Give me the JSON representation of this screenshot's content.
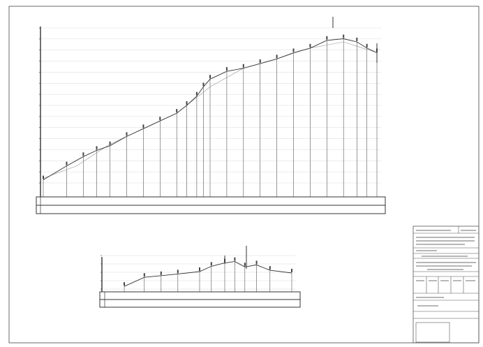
{
  "sheet": {
    "frame_color": "#6a6a6a",
    "ink_color": "#333333",
    "grid_color": "#d8d8d8"
  },
  "profile_main": {
    "header": "",
    "scale_note_1": "",
    "scale_note_2": "",
    "scale_mark": "",
    "station_count": 24,
    "elevation_profile": [
      [
        0.0,
        0.02
      ],
      [
        0.07,
        0.11
      ],
      [
        0.12,
        0.17
      ],
      [
        0.16,
        0.21
      ],
      [
        0.2,
        0.24
      ],
      [
        0.25,
        0.3
      ],
      [
        0.3,
        0.35
      ],
      [
        0.35,
        0.4
      ],
      [
        0.4,
        0.45
      ],
      [
        0.43,
        0.5
      ],
      [
        0.46,
        0.56
      ],
      [
        0.48,
        0.62
      ],
      [
        0.5,
        0.67
      ],
      [
        0.55,
        0.72
      ],
      [
        0.6,
        0.74
      ],
      [
        0.65,
        0.77
      ],
      [
        0.7,
        0.8
      ],
      [
        0.75,
        0.84
      ],
      [
        0.8,
        0.87
      ],
      [
        0.85,
        0.92
      ],
      [
        0.9,
        0.93
      ],
      [
        0.94,
        0.91
      ],
      [
        0.97,
        0.87
      ],
      [
        1.0,
        0.84
      ]
    ],
    "reference_line": [
      [
        0.0,
        0.04
      ],
      [
        0.1,
        0.12
      ],
      [
        0.2,
        0.26
      ],
      [
        0.3,
        0.36
      ],
      [
        0.4,
        0.46
      ],
      [
        0.5,
        0.63
      ],
      [
        0.6,
        0.75
      ],
      [
        0.7,
        0.81
      ],
      [
        0.8,
        0.88
      ],
      [
        0.9,
        0.92
      ],
      [
        1.0,
        0.85
      ]
    ]
  },
  "profile_secondary": {
    "header": "",
    "scale_note_1": "",
    "scale_note_2": "",
    "scale_mark": "",
    "elevation_profile": [
      [
        0.0,
        0.08
      ],
      [
        0.12,
        0.35
      ],
      [
        0.22,
        0.4
      ],
      [
        0.32,
        0.45
      ],
      [
        0.45,
        0.52
      ],
      [
        0.52,
        0.68
      ],
      [
        0.6,
        0.78
      ],
      [
        0.66,
        0.82
      ],
      [
        0.72,
        0.66
      ],
      [
        0.79,
        0.72
      ],
      [
        0.87,
        0.56
      ],
      [
        1.0,
        0.48
      ]
    ]
  },
  "title_block": {
    "rows": [
      "",
      "",
      "",
      "",
      "",
      "",
      "",
      ""
    ]
  }
}
